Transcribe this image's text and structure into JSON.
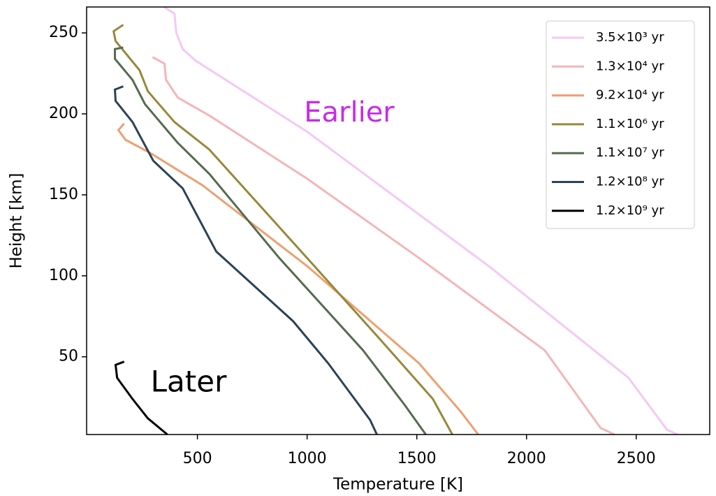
{
  "chart_data": {
    "type": "line",
    "xlabel": "Temperature [K]",
    "ylabel": "Height [km]",
    "xlim": [
      -5,
      2835
    ],
    "ylim": [
      2,
      266
    ],
    "xticks": [
      500,
      1000,
      1500,
      2000,
      2500
    ],
    "yticks": [
      50,
      100,
      150,
      200,
      250
    ],
    "grid": false,
    "legend": "upper right",
    "annotations": [
      {
        "text": "Earlier",
        "color": "#c62ce8"
      },
      {
        "text": "Later",
        "color": "#000000"
      }
    ],
    "series": [
      {
        "name": "3.5×10³ yr",
        "color": "#f4c8f6",
        "x": [
          347,
          395,
          404,
          433,
          490,
          1000,
          1828,
          2465,
          2640,
          2688
        ],
        "values": [
          266,
          262,
          250,
          240,
          233,
          189,
          106,
          37,
          5,
          2
        ]
      },
      {
        "name": "1.3×10⁴ yr",
        "color": "#f4b5b8",
        "x": [
          296,
          350,
          357,
          411,
          554,
          1000,
          1510,
          2083,
          2338,
          2401
        ],
        "values": [
          235,
          231,
          221,
          210,
          199,
          160,
          111,
          54,
          6,
          2
        ]
      },
      {
        "name": "9.2×10⁴ yr",
        "color": "#eda070",
        "x": [
          166,
          140,
          172,
          283,
          522,
          1000,
          1510,
          1701,
          1780
        ],
        "values": [
          194,
          190,
          184,
          176,
          156,
          106,
          46,
          16,
          2
        ]
      },
      {
        "name": "1.1×10⁶ yr",
        "color": "#98883a",
        "x": [
          162,
          118,
          127,
          236,
          274,
          395,
          554,
          1000,
          1318,
          1573,
          1662
        ],
        "values": [
          255,
          251,
          245,
          227,
          214,
          195,
          178,
          111,
          63,
          24,
          2
        ]
      },
      {
        "name": "1.1×10⁷ yr",
        "color": "#556b50",
        "x": [
          162,
          124,
          124,
          204,
          261,
          411,
          554,
          873,
          1255,
          1446,
          1541
        ],
        "values": [
          241,
          240,
          234,
          221,
          206,
          182,
          163,
          111,
          54,
          20,
          2
        ]
      },
      {
        "name": "1.2×10⁸ yr",
        "color": "#2b4257",
        "x": [
          162,
          124,
          127,
          204,
          299,
          433,
          586,
          936,
          1096,
          1287,
          1318
        ],
        "values": [
          217,
          215,
          208,
          195,
          171,
          154,
          115,
          72,
          46,
          11,
          2
        ]
      },
      {
        "name": "1.2×10⁹ yr",
        "color": "#000000",
        "x": [
          166,
          127,
          134,
          204,
          274,
          363
        ],
        "values": [
          47,
          45,
          37,
          24,
          12,
          2
        ]
      }
    ]
  }
}
